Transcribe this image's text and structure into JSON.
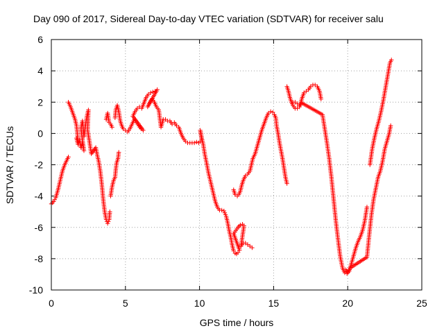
{
  "chart_data": {
    "type": "scatter",
    "title": "Day 090 of 2017, Sidereal Day-to-day VTEC variation (SDTVAR) for receiver salu",
    "xlabel": "GPS time / hours",
    "ylabel": "SDTVAR / TECUs",
    "xlim": [
      0,
      25
    ],
    "ylim": [
      -10,
      6
    ],
    "xticks": [
      0,
      5,
      10,
      15,
      20,
      25
    ],
    "yticks": [
      -10,
      -8,
      -6,
      -4,
      -2,
      0,
      2,
      4,
      6
    ],
    "xtick_labels": [
      "0",
      "5",
      "10",
      "15",
      "20",
      "25"
    ],
    "ytick_labels": [
      "-10",
      "-8",
      "-6",
      "-4",
      "-2",
      "0",
      "2",
      "4",
      "6"
    ],
    "grid": true,
    "marker": "+",
    "color": "#ff0000",
    "series": [
      {
        "points": [
          [
            0.0,
            -4.5
          ],
          [
            0.15,
            -4.35
          ],
          [
            0.3,
            -4.1
          ],
          [
            0.45,
            -3.6
          ],
          [
            0.6,
            -3.0
          ],
          [
            0.75,
            -2.4
          ],
          [
            0.9,
            -2.0
          ],
          [
            1.05,
            -1.7
          ],
          [
            1.15,
            -1.5
          ],
          [
            1.15,
            2.0
          ],
          [
            1.3,
            1.7
          ],
          [
            1.45,
            1.3
          ],
          [
            1.6,
            0.9
          ],
          [
            1.7,
            0.5
          ],
          [
            1.75,
            0.0
          ],
          [
            1.8,
            -0.5
          ],
          [
            1.7,
            -0.3
          ],
          [
            1.8,
            -0.7
          ],
          [
            1.9,
            -0.4
          ],
          [
            2.0,
            -0.9
          ],
          [
            2.1,
            -0.6
          ],
          [
            2.2,
            -1.1
          ],
          [
            2.0,
            0.3
          ],
          [
            2.1,
            0.8
          ],
          [
            2.2,
            -0.2
          ],
          [
            2.3,
            0.5
          ],
          [
            2.4,
            1.1
          ],
          [
            2.5,
            1.5
          ],
          [
            2.45,
            0.2
          ],
          [
            2.6,
            -0.7
          ],
          [
            2.7,
            -1.3
          ],
          [
            3.0,
            -0.9
          ],
          [
            3.1,
            -1.4
          ],
          [
            3.2,
            -1.8
          ],
          [
            3.3,
            -2.4
          ],
          [
            3.4,
            -3.2
          ],
          [
            3.5,
            -4.2
          ],
          [
            3.6,
            -5.0
          ],
          [
            3.7,
            -5.5
          ],
          [
            3.8,
            -5.75
          ],
          [
            3.9,
            -5.5
          ],
          [
            3.95,
            -5.0
          ],
          [
            3.7,
            0.9
          ],
          [
            3.8,
            1.3
          ],
          [
            3.9,
            0.7
          ],
          [
            4.0,
            0.6
          ],
          [
            4.1,
            0.4
          ],
          [
            4.0,
            -4.0
          ],
          [
            4.1,
            -3.4
          ],
          [
            4.2,
            -3.0
          ],
          [
            4.3,
            -2.8
          ],
          [
            4.35,
            -2.3
          ],
          [
            4.4,
            -1.9
          ],
          [
            4.5,
            -1.6
          ],
          [
            4.55,
            -1.2
          ],
          [
            4.3,
            1.0
          ],
          [
            4.35,
            1.5
          ],
          [
            4.45,
            1.8
          ],
          [
            4.55,
            1.4
          ],
          [
            4.65,
            0.8
          ],
          [
            4.75,
            0.5
          ],
          [
            4.85,
            0.3
          ],
          [
            5.0,
            0.2
          ],
          [
            5.15,
            0.1
          ],
          [
            5.3,
            0.3
          ],
          [
            5.45,
            0.6
          ],
          [
            5.6,
            0.9
          ],
          [
            5.75,
            0.7
          ],
          [
            5.9,
            0.5
          ],
          [
            6.05,
            0.3
          ],
          [
            6.2,
            0.2
          ],
          [
            5.5,
            1.1
          ],
          [
            5.65,
            1.4
          ],
          [
            5.8,
            1.6
          ],
          [
            5.95,
            1.7
          ],
          [
            6.1,
            1.6
          ],
          [
            6.4,
            2.3
          ],
          [
            6.55,
            2.5
          ],
          [
            6.7,
            2.6
          ],
          [
            6.85,
            2.65
          ],
          [
            7.0,
            2.7
          ],
          [
            7.15,
            2.8
          ],
          [
            6.5,
            1.7
          ],
          [
            6.65,
            2.0
          ],
          [
            6.8,
            2.2
          ],
          [
            6.95,
            2.0
          ],
          [
            7.1,
            1.7
          ],
          [
            7.25,
            1.5
          ],
          [
            7.4,
            0.4
          ],
          [
            7.55,
            0.9
          ],
          [
            7.7,
            0.9
          ],
          [
            7.85,
            0.8
          ],
          [
            8.0,
            0.8
          ],
          [
            8.15,
            0.6
          ],
          [
            8.3,
            0.7
          ],
          [
            8.45,
            0.5
          ],
          [
            8.6,
            0.4
          ],
          [
            8.75,
            0.0
          ],
          [
            8.9,
            -0.3
          ],
          [
            9.05,
            -0.5
          ],
          [
            9.2,
            -0.6
          ],
          [
            9.35,
            -0.6
          ],
          [
            9.5,
            -0.6
          ],
          [
            9.65,
            -0.6
          ],
          [
            9.8,
            -0.55
          ],
          [
            9.95,
            -0.6
          ],
          [
            10.05,
            -0.5
          ],
          [
            10.15,
            -0.4
          ],
          [
            10.05,
            0.2
          ],
          [
            10.15,
            -0.3
          ],
          [
            10.25,
            -0.7
          ],
          [
            10.35,
            -1.3
          ],
          [
            10.5,
            -2.0
          ],
          [
            10.6,
            -2.5
          ],
          [
            10.75,
            -3.1
          ],
          [
            10.9,
            -3.7
          ],
          [
            11.05,
            -4.3
          ],
          [
            11.2,
            -4.7
          ],
          [
            11.35,
            -4.9
          ],
          [
            11.5,
            -4.9
          ],
          [
            11.65,
            -4.95
          ],
          [
            11.8,
            -5.3
          ],
          [
            11.9,
            -5.7
          ],
          [
            12.0,
            -6.2
          ],
          [
            12.1,
            -6.6
          ],
          [
            12.2,
            -7.1
          ],
          [
            12.3,
            -7.5
          ],
          [
            12.4,
            -7.65
          ],
          [
            12.5,
            -7.7
          ],
          [
            12.6,
            -7.6
          ],
          [
            12.7,
            -7.45
          ],
          [
            12.3,
            -6.4
          ],
          [
            12.45,
            -6.2
          ],
          [
            12.6,
            -6.0
          ],
          [
            12.75,
            -5.85
          ],
          [
            12.9,
            -5.8
          ],
          [
            13.0,
            -5.9
          ],
          [
            12.8,
            -7.2
          ],
          [
            12.95,
            -7.0
          ],
          [
            13.1,
            -7.0
          ],
          [
            13.25,
            -7.1
          ],
          [
            13.4,
            -7.2
          ],
          [
            13.55,
            -7.3
          ],
          [
            12.3,
            -3.6
          ],
          [
            12.4,
            -3.9
          ],
          [
            12.55,
            -4.0
          ],
          [
            12.65,
            -3.9
          ],
          [
            12.75,
            -3.7
          ],
          [
            12.85,
            -3.3
          ],
          [
            12.95,
            -3.0
          ],
          [
            13.1,
            -2.7
          ],
          [
            13.25,
            -2.6
          ],
          [
            13.4,
            -2.4
          ],
          [
            13.5,
            -2.0
          ],
          [
            13.6,
            -1.6
          ],
          [
            13.75,
            -1.3
          ],
          [
            13.9,
            -0.8
          ],
          [
            14.05,
            -0.3
          ],
          [
            14.2,
            0.2
          ],
          [
            14.35,
            0.6
          ],
          [
            14.5,
            1.0
          ],
          [
            14.65,
            1.3
          ],
          [
            14.8,
            1.4
          ],
          [
            14.95,
            1.35
          ],
          [
            15.05,
            1.2
          ],
          [
            15.15,
            1.0
          ],
          [
            15.2,
            0.5
          ],
          [
            15.3,
            0.0
          ],
          [
            15.4,
            -0.6
          ],
          [
            15.5,
            -1.1
          ],
          [
            15.6,
            -1.6
          ],
          [
            15.7,
            -2.2
          ],
          [
            15.8,
            -2.8
          ],
          [
            15.9,
            -3.2
          ],
          [
            15.9,
            3.0
          ],
          [
            16.0,
            2.7
          ],
          [
            16.1,
            2.3
          ],
          [
            16.2,
            2.0
          ],
          [
            16.3,
            1.8
          ],
          [
            16.45,
            1.6
          ],
          [
            16.6,
            1.6
          ],
          [
            16.75,
            1.7
          ],
          [
            16.9,
            2.2
          ],
          [
            17.05,
            2.6
          ],
          [
            17.2,
            2.7
          ],
          [
            17.35,
            2.8
          ],
          [
            17.5,
            3.0
          ],
          [
            17.65,
            3.1
          ],
          [
            17.8,
            3.1
          ],
          [
            17.95,
            3.0
          ],
          [
            18.1,
            2.7
          ],
          [
            18.2,
            2.2
          ],
          [
            16.3,
            2.0
          ],
          [
            16.45,
            2.0
          ],
          [
            16.6,
            1.9
          ],
          [
            16.75,
            1.8
          ],
          [
            16.9,
            1.95
          ],
          [
            18.3,
            1.2
          ],
          [
            18.45,
            0.3
          ],
          [
            18.6,
            -0.6
          ],
          [
            18.75,
            -1.6
          ],
          [
            18.9,
            -2.8
          ],
          [
            19.05,
            -4.2
          ],
          [
            19.2,
            -5.6
          ],
          [
            19.35,
            -6.8
          ],
          [
            19.5,
            -7.9
          ],
          [
            19.65,
            -8.6
          ],
          [
            19.8,
            -8.9
          ],
          [
            19.95,
            -8.95
          ],
          [
            20.1,
            -8.8
          ],
          [
            20.25,
            -8.3
          ],
          [
            20.4,
            -7.8
          ],
          [
            20.55,
            -7.3
          ],
          [
            20.7,
            -6.9
          ],
          [
            20.85,
            -6.6
          ],
          [
            21.0,
            -6.2
          ],
          [
            21.15,
            -5.6
          ],
          [
            21.3,
            -4.7
          ],
          [
            19.85,
            -8.7
          ],
          [
            20.0,
            -8.85
          ],
          [
            20.15,
            -8.6
          ],
          [
            21.3,
            -7.9
          ],
          [
            21.45,
            -6.5
          ],
          [
            21.6,
            -5.2
          ],
          [
            21.75,
            -4.2
          ],
          [
            21.9,
            -3.5
          ],
          [
            22.05,
            -2.8
          ],
          [
            22.2,
            -2.4
          ],
          [
            22.35,
            -1.8
          ],
          [
            22.5,
            -1.0
          ],
          [
            22.65,
            -0.5
          ],
          [
            22.8,
            0.0
          ],
          [
            22.9,
            0.5
          ],
          [
            21.5,
            -2.0
          ],
          [
            21.65,
            -1.0
          ],
          [
            21.8,
            -0.3
          ],
          [
            21.95,
            0.3
          ],
          [
            22.1,
            0.8
          ],
          [
            22.25,
            1.4
          ],
          [
            22.4,
            2.1
          ],
          [
            22.55,
            2.9
          ],
          [
            22.7,
            3.7
          ],
          [
            22.85,
            4.5
          ],
          [
            22.95,
            4.7
          ]
        ]
      }
    ]
  }
}
